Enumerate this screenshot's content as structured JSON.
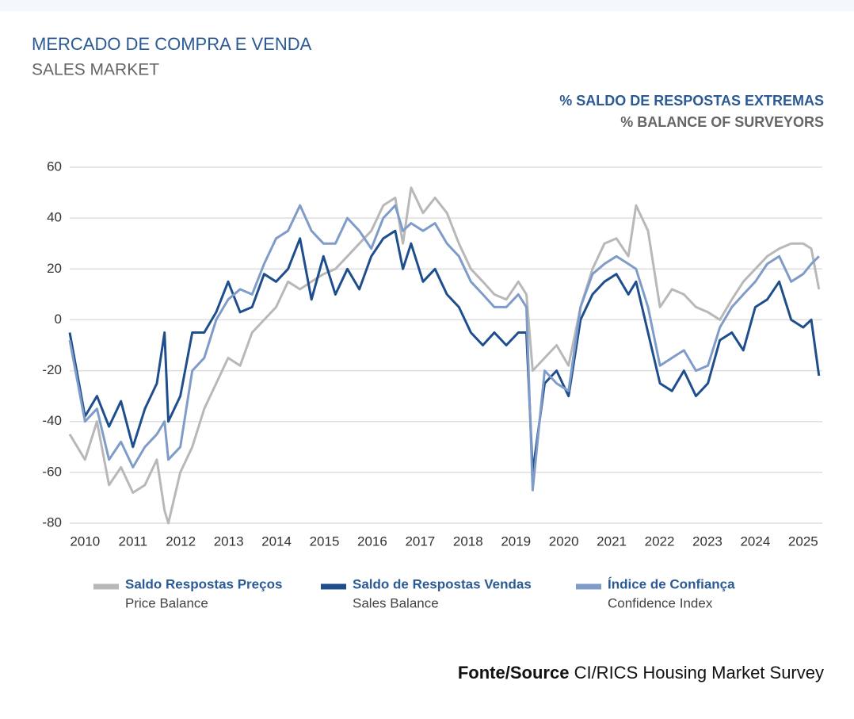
{
  "chart_data": {
    "type": "line",
    "title": "MERCADO DE COMPRA E VENDA",
    "subtitle": "SALES MARKET",
    "y_label": "% SALDO DE RESPOSTAS EXTREMAS",
    "y_label_en": "% BALANCE OF SURVEYORS",
    "source": {
      "label": "Fonte/Source",
      "text": "CI/RICS Housing Market Survey"
    },
    "grid": true,
    "xlim": [
      2009.68,
      2025.4
    ],
    "xticks": [
      2010,
      2011,
      2012,
      2013,
      2014,
      2015,
      2016,
      2017,
      2018,
      2019,
      2020,
      2021,
      2022,
      2023,
      2024,
      2025
    ],
    "ylim": [
      -80,
      60
    ],
    "yticks": [
      60,
      40,
      20,
      0,
      -20,
      -40,
      -60,
      -80
    ],
    "x": [
      2009.68,
      2010,
      2010.25,
      2010.5,
      2010.75,
      2011,
      2011.25,
      2011.5,
      2011.66,
      2011.74,
      2011.99,
      2012.24,
      2012.49,
      2012.74,
      2012.99,
      2013.24,
      2013.49,
      2013.74,
      2013.99,
      2014.24,
      2014.49,
      2014.73,
      2014.98,
      2015.23,
      2015.48,
      2015.73,
      2015.98,
      2016.23,
      2016.48,
      2016.64,
      2016.81,
      2017.06,
      2017.31,
      2017.56,
      2017.81,
      2018.06,
      2018.31,
      2018.55,
      2018.8,
      2019.05,
      2019.22,
      2019.35,
      2019.6,
      2019.85,
      2020.1,
      2020.35,
      2020.6,
      2020.85,
      2021.1,
      2021.35,
      2021.51,
      2021.76,
      2022.01,
      2022.26,
      2022.51,
      2022.76,
      2023.01,
      2023.26,
      2023.51,
      2023.75,
      2024,
      2024.25,
      2024.5,
      2024.75,
      2025,
      2025.17,
      2025.33
    ],
    "series": [
      {
        "name": "Saldo Respostas Preços",
        "name_en": "Price Balance",
        "color": "#b8b8b8",
        "values": [
          -45,
          -55,
          -40,
          -65,
          -58,
          -68,
          -65,
          -55,
          -75,
          -80,
          -60,
          -50,
          -35,
          -25,
          -15,
          -18,
          -5,
          0,
          5,
          15,
          12,
          15,
          18,
          20,
          25,
          30,
          35,
          45,
          48,
          30,
          52,
          42,
          48,
          42,
          30,
          20,
          15,
          10,
          8,
          15,
          10,
          -20,
          -15,
          -10,
          -18,
          5,
          20,
          30,
          32,
          25,
          45,
          35,
          5,
          12,
          10,
          5,
          3,
          0,
          8,
          15,
          20,
          25,
          28,
          30,
          30,
          28,
          12
        ]
      },
      {
        "name": "Saldo de Respostas Vendas",
        "name_en": "Sales Balance",
        "color": "#1f4e8c",
        "values": [
          -5,
          -38,
          -30,
          -42,
          -32,
          -50,
          -35,
          -25,
          -5,
          -40,
          -30,
          -5,
          -5,
          3,
          15,
          3,
          5,
          18,
          15,
          20,
          32,
          8,
          25,
          10,
          20,
          12,
          25,
          32,
          35,
          20,
          30,
          15,
          20,
          10,
          5,
          -5,
          -10,
          -5,
          -10,
          -5,
          -5,
          -60,
          -25,
          -20,
          -30,
          0,
          10,
          15,
          18,
          10,
          15,
          -5,
          -25,
          -28,
          -20,
          -30,
          -25,
          -8,
          -5,
          -12,
          5,
          8,
          15,
          0,
          -3,
          0,
          -22
        ]
      },
      {
        "name": "Índice de Confiança",
        "name_en": "Confidence Index",
        "color": "#7f9cc9",
        "values": [
          -8,
          -40,
          -35,
          -55,
          -48,
          -58,
          -50,
          -45,
          -40,
          -55,
          -50,
          -20,
          -15,
          0,
          8,
          12,
          10,
          22,
          32,
          35,
          45,
          35,
          30,
          30,
          40,
          35,
          28,
          40,
          45,
          35,
          38,
          35,
          38,
          30,
          25,
          15,
          10,
          5,
          5,
          10,
          5,
          -67,
          -20,
          -25,
          -28,
          5,
          18,
          22,
          25,
          22,
          20,
          5,
          -18,
          -15,
          -12,
          -20,
          -18,
          -3,
          5,
          10,
          15,
          22,
          25,
          15,
          18,
          22,
          25
        ]
      }
    ]
  }
}
